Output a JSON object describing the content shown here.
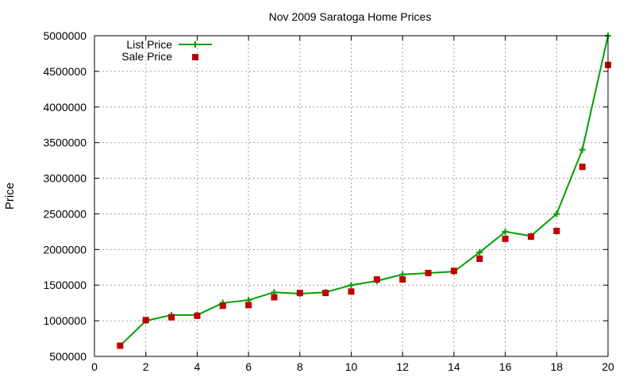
{
  "chart_data": {
    "type": "line",
    "title": "Nov 2009 Saratoga Home Prices",
    "xlabel": "",
    "ylabel": "Price",
    "xlim": [
      0,
      20
    ],
    "ylim": [
      500000,
      5000000
    ],
    "xticks": [
      "0",
      "2",
      "4",
      "6",
      "8",
      "10",
      "12",
      "14",
      "16",
      "18",
      "20"
    ],
    "yticks": [
      "500000",
      "1000000",
      "1500000",
      "2000000",
      "2500000",
      "3000000",
      "3500000",
      "4000000",
      "4500000",
      "5000000"
    ],
    "grid": true,
    "legend_position": "top-left",
    "x": [
      1,
      2,
      3,
      4,
      5,
      6,
      7,
      8,
      9,
      10,
      11,
      12,
      13,
      14,
      15,
      16,
      17,
      18,
      19,
      20
    ],
    "series": [
      {
        "name": "List Price",
        "style": "line-with-cross-markers",
        "color": "#00a000",
        "values": [
          650000,
          1000000,
          1080000,
          1080000,
          1250000,
          1290000,
          1400000,
          1380000,
          1400000,
          1500000,
          1560000,
          1650000,
          1670000,
          1690000,
          1960000,
          2250000,
          2190000,
          2500000,
          3400000,
          5000000
        ]
      },
      {
        "name": "Sale Price",
        "style": "square-markers",
        "color": "#c00000",
        "values": [
          650000,
          1010000,
          1050000,
          1070000,
          1210000,
          1220000,
          1330000,
          1390000,
          1390000,
          1410000,
          1580000,
          1580000,
          1670000,
          1700000,
          1870000,
          2150000,
          2180000,
          2260000,
          3160000,
          4590000
        ]
      }
    ]
  }
}
